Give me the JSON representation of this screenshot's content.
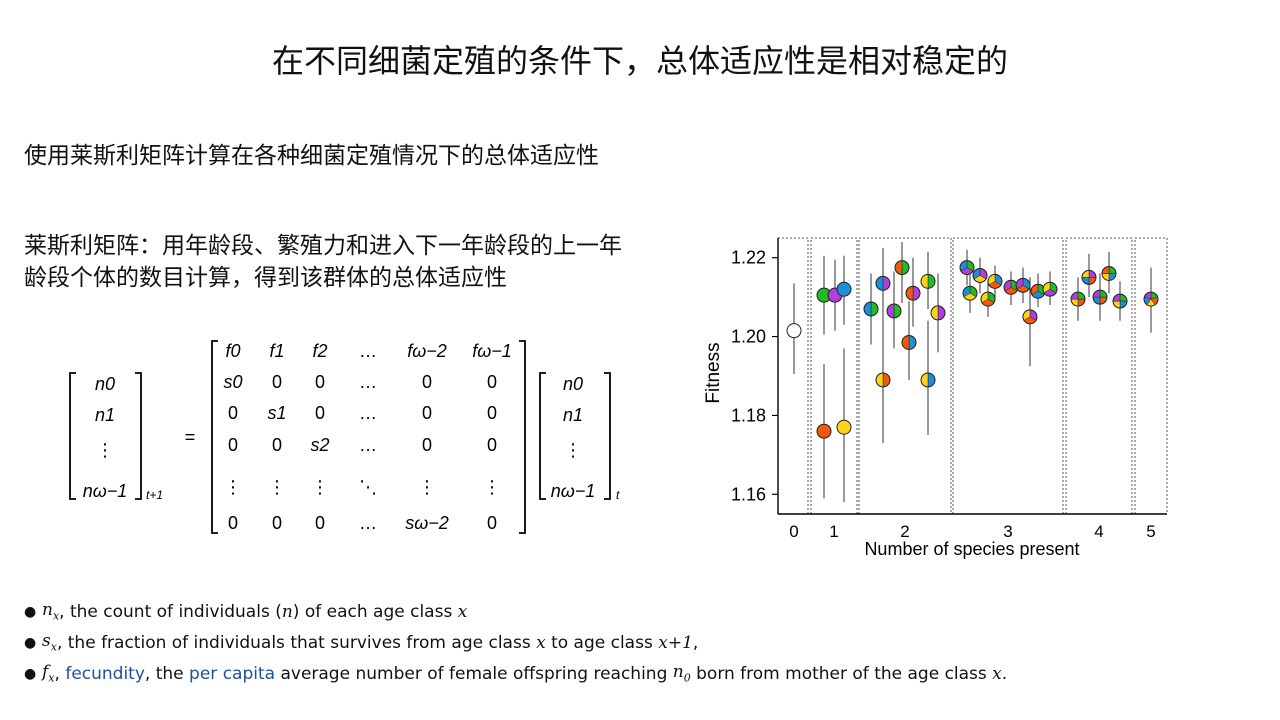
{
  "title": "在不同细菌定殖的条件下，总体适应性是相对稳定的",
  "intro": "使用莱斯利矩阵计算在各种细菌定殖情况下的总体适应性",
  "leslie_desc": "莱斯利矩阵：用年龄段、繁殖力和进入下一年龄段的上一年龄段个体的数目计算，得到该群体的总体适应性",
  "equation": {
    "lhs_vector": [
      "n0",
      "n1",
      "⋮",
      "nω−1"
    ],
    "lhs_sub": "t+1",
    "equals": "=",
    "matrix": [
      [
        "f0",
        "f1",
        "f2",
        "…",
        "fω−2",
        "fω−1"
      ],
      [
        "s0",
        "0",
        "0",
        "…",
        "0",
        "0"
      ],
      [
        "0",
        "s1",
        "0",
        "…",
        "0",
        "0"
      ],
      [
        "0",
        "0",
        "s2",
        "…",
        "0",
        "0"
      ],
      [
        "⋮",
        "⋮",
        "⋮",
        "⋱",
        "⋮",
        "⋮"
      ],
      [
        "0",
        "0",
        "0",
        "…",
        "sω−2",
        "0"
      ]
    ],
    "rhs_vector": [
      "n0",
      "n1",
      "⋮",
      "nω−1"
    ],
    "rhs_sub": "t"
  },
  "bullets": [
    {
      "sym": "nx",
      "text": ", the count of individuals (",
      "n": "n",
      "text2": ") of each age class ",
      "x": "x"
    },
    {
      "sym": "sx",
      "text": ", the fraction of individuals that survives from age class ",
      "x": "x",
      "text2": " to age class ",
      "x1": "x+1",
      "tail": ","
    },
    {
      "sym": "fx",
      "sep": ", ",
      "link1": "fecundity",
      "mid": ", the ",
      "link2": "per capita",
      "text": " average number of female offspring reaching ",
      "n0": "n0",
      "text2": " born from mother of the age class ",
      "x": "x",
      "tail": "."
    }
  ],
  "chart_data": {
    "type": "scatter",
    "xlabel": "Number of species present",
    "ylabel": "Fitness",
    "ylim": [
      1.155,
      1.225
    ],
    "yticks": [
      "1.16",
      "1.18",
      "1.20",
      "1.22"
    ],
    "xticks": [
      "0",
      "1",
      "2",
      "3",
      "4",
      "5"
    ],
    "groups": [
      {
        "label": "0",
        "points": [
          {
            "y": 1.2015,
            "lo": 1.1905,
            "hi": 1.2135,
            "colors": [
              "#ffffff"
            ]
          }
        ]
      },
      {
        "label": "1",
        "points": [
          {
            "y": 1.2105,
            "lo": 1.2005,
            "hi": 1.2205,
            "colors": [
              "#22bb22"
            ]
          },
          {
            "y": 1.2105,
            "lo": 1.2015,
            "hi": 1.2195,
            "colors": [
              "#b03fdc"
            ]
          },
          {
            "y": 1.212,
            "lo": 1.203,
            "hi": 1.2205,
            "colors": [
              "#1f8ed6"
            ]
          },
          {
            "y": 1.176,
            "lo": 1.159,
            "hi": 1.193,
            "colors": [
              "#ef5a0c"
            ]
          },
          {
            "y": 1.177,
            "lo": 1.158,
            "hi": 1.197,
            "colors": [
              "#ffd21a"
            ]
          }
        ]
      },
      {
        "label": "2",
        "points": [
          {
            "y": 1.207,
            "lo": 1.198,
            "hi": 1.216,
            "colors": [
              "#22bb22",
              "#1f8ed6"
            ]
          },
          {
            "y": 1.2135,
            "lo": 1.204,
            "hi": 1.2225,
            "colors": [
              "#b03fdc",
              "#1f8ed6"
            ]
          },
          {
            "y": 1.2065,
            "lo": 1.197,
            "hi": 1.2165,
            "colors": [
              "#22bb22",
              "#b03fdc"
            ]
          },
          {
            "y": 1.189,
            "lo": 1.173,
            "hi": 1.205,
            "colors": [
              "#ef5a0c",
              "#ffd21a"
            ]
          },
          {
            "y": 1.2175,
            "lo": 1.2085,
            "hi": 1.224,
            "colors": [
              "#22bb22",
              "#ef5a0c"
            ]
          },
          {
            "y": 1.1985,
            "lo": 1.189,
            "hi": 1.209,
            "colors": [
              "#1f8ed6",
              "#ef5a0c"
            ]
          },
          {
            "y": 1.211,
            "lo": 1.2025,
            "hi": 1.22,
            "colors": [
              "#b03fdc",
              "#ef5a0c"
            ]
          },
          {
            "y": 1.214,
            "lo": 1.207,
            "hi": 1.2215,
            "colors": [
              "#22bb22",
              "#ffd21a"
            ]
          },
          {
            "y": 1.189,
            "lo": 1.175,
            "hi": 1.204,
            "colors": [
              "#1f8ed6",
              "#ffd21a"
            ]
          },
          {
            "y": 1.206,
            "lo": 1.196,
            "hi": 1.216,
            "colors": [
              "#b03fdc",
              "#ffd21a"
            ]
          }
        ]
      },
      {
        "label": "3",
        "points": [
          {
            "y": 1.2175,
            "lo": 1.213,
            "hi": 1.222,
            "colors": [
              "#22bb22",
              "#b03fdc",
              "#1f8ed6"
            ]
          },
          {
            "y": 1.211,
            "lo": 1.206,
            "hi": 1.216,
            "colors": [
              "#22bb22",
              "#ffd21a",
              "#1f8ed6"
            ]
          },
          {
            "y": 1.2155,
            "lo": 1.211,
            "hi": 1.22,
            "colors": [
              "#b03fdc",
              "#ffd21a",
              "#1f8ed6"
            ]
          },
          {
            "y": 1.2095,
            "lo": 1.205,
            "hi": 1.214,
            "colors": [
              "#22bb22",
              "#ef5a0c",
              "#ffd21a"
            ]
          },
          {
            "y": 1.214,
            "lo": 1.21,
            "hi": 1.218,
            "colors": [
              "#1f8ed6",
              "#ef5a0c",
              "#ffd21a"
            ]
          },
          {
            "y": 1.2125,
            "lo": 1.208,
            "hi": 1.2165,
            "colors": [
              "#22bb22",
              "#ef5a0c",
              "#b03fdc"
            ]
          },
          {
            "y": 1.213,
            "lo": 1.2085,
            "hi": 1.2175,
            "colors": [
              "#1f8ed6",
              "#ef5a0c",
              "#b03fdc"
            ]
          },
          {
            "y": 1.205,
            "lo": 1.1925,
            "hi": 1.215,
            "colors": [
              "#b03fdc",
              "#ef5a0c",
              "#ffd21a"
            ]
          },
          {
            "y": 1.2115,
            "lo": 1.2075,
            "hi": 1.216,
            "colors": [
              "#22bb22",
              "#1f8ed6",
              "#ef5a0c"
            ]
          },
          {
            "y": 1.212,
            "lo": 1.208,
            "hi": 1.2165,
            "colors": [
              "#22bb22",
              "#b03fdc",
              "#ffd21a"
            ]
          }
        ]
      },
      {
        "label": "4",
        "points": [
          {
            "y": 1.2095,
            "lo": 1.204,
            "hi": 1.215,
            "colors": [
              "#22bb22",
              "#ef5a0c",
              "#ffd21a",
              "#b03fdc"
            ]
          },
          {
            "y": 1.215,
            "lo": 1.21,
            "hi": 1.221,
            "colors": [
              "#b03fdc",
              "#ef5a0c",
              "#1f8ed6",
              "#ffd21a"
            ]
          },
          {
            "y": 1.21,
            "lo": 1.204,
            "hi": 1.216,
            "colors": [
              "#22bb22",
              "#ef5a0c",
              "#1f8ed6",
              "#b03fdc"
            ]
          },
          {
            "y": 1.216,
            "lo": 1.211,
            "hi": 1.2215,
            "colors": [
              "#22bb22",
              "#1f8ed6",
              "#ffd21a",
              "#ef5a0c"
            ]
          },
          {
            "y": 1.209,
            "lo": 1.204,
            "hi": 1.214,
            "colors": [
              "#22bb22",
              "#1f8ed6",
              "#ffd21a",
              "#b03fdc"
            ]
          }
        ]
      },
      {
        "label": "5",
        "points": [
          {
            "y": 1.2095,
            "lo": 1.201,
            "hi": 1.2175,
            "colors": [
              "#22bb22",
              "#ef5a0c",
              "#ffd21a",
              "#1f8ed6",
              "#b03fdc"
            ]
          }
        ]
      }
    ]
  }
}
